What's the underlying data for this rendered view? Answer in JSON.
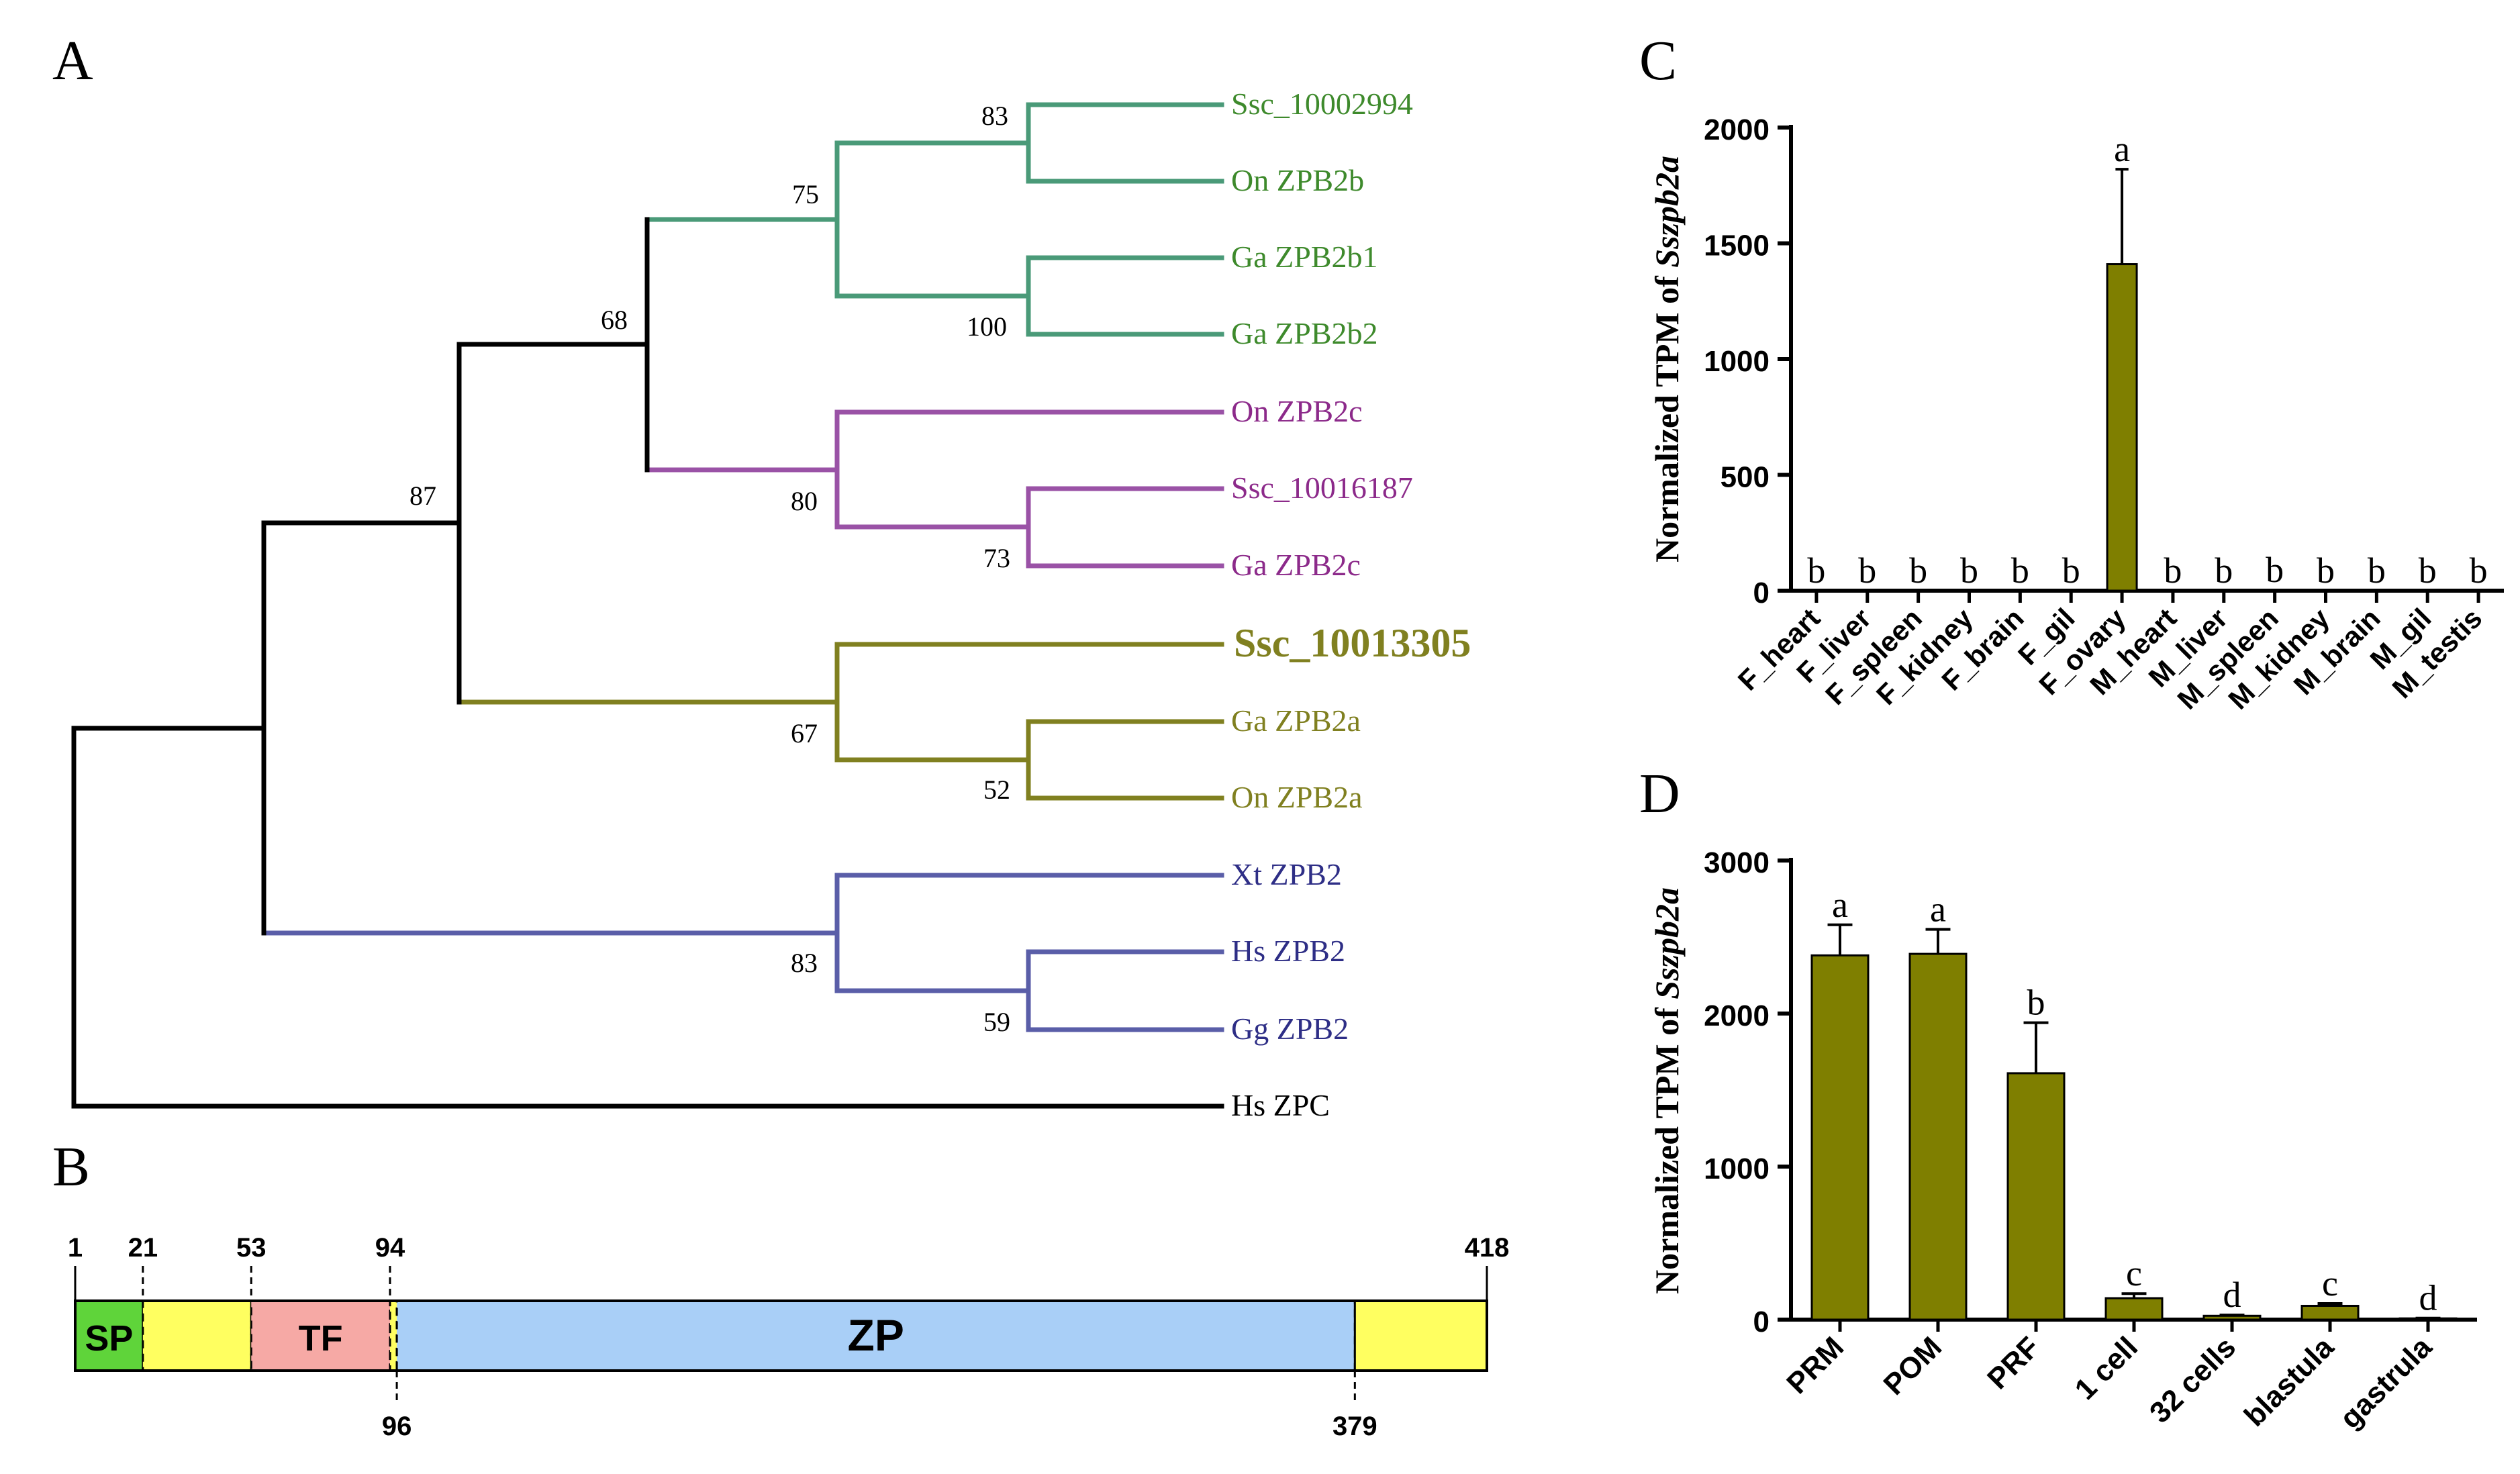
{
  "panels": {
    "A": "A",
    "B": "B",
    "C": "C",
    "D": "D"
  },
  "colors": {
    "green": "#4a9a78",
    "green_text": "#3e8a2c",
    "purple": "#9a52a6",
    "purple_text": "#8c2a8a",
    "olive": "#808020",
    "olive_bar": "#7f7f00",
    "blue": "#5a5ea8",
    "blue_text": "#2e2e86",
    "black": "#000000",
    "sp": "#5fd43a",
    "tf": "#f6a9a5",
    "zp": "#a9cff7",
    "yellow": "#ffff60"
  },
  "tree": {
    "leaves": [
      {
        "label": "Ssc_10002994",
        "group": "green"
      },
      {
        "label": "On ZPB2b",
        "group": "green"
      },
      {
        "label": "Ga ZPB2b1",
        "group": "green"
      },
      {
        "label": "Ga ZPB2b2",
        "group": "green"
      },
      {
        "label": "On ZPB2c",
        "group": "purple"
      },
      {
        "label": "Ssc_10016187",
        "group": "purple"
      },
      {
        "label": "Ga ZPB2c",
        "group": "purple"
      },
      {
        "label": "Ssc_10013305",
        "group": "olive",
        "bold": true
      },
      {
        "label": "Ga ZPB2a",
        "group": "olive"
      },
      {
        "label": "On ZPB2a",
        "group": "olive"
      },
      {
        "label": "Xt ZPB2",
        "group": "blue"
      },
      {
        "label": "Hs ZPB2",
        "group": "blue"
      },
      {
        "label": "Gg ZPB2",
        "group": "blue"
      },
      {
        "label": "Hs ZPC",
        "group": "black"
      }
    ],
    "bootstrap": [
      "83",
      "75",
      "100",
      "68",
      "80",
      "73",
      "87",
      "67",
      "52",
      "83",
      "59"
    ]
  },
  "domain_map": {
    "length": 418,
    "positions": [
      {
        "label": "1",
        "value": 1,
        "side": "top"
      },
      {
        "label": "21",
        "value": 21,
        "side": "top"
      },
      {
        "label": "53",
        "value": 53,
        "side": "top"
      },
      {
        "label": "94",
        "value": 94,
        "side": "top"
      },
      {
        "label": "418",
        "value": 418,
        "side": "top"
      },
      {
        "label": "96",
        "value": 96,
        "side": "bottom"
      },
      {
        "label": "379",
        "value": 379,
        "side": "bottom"
      }
    ],
    "domains": [
      {
        "label": "SP",
        "start": 1,
        "end": 21,
        "color": "sp"
      },
      {
        "label": "",
        "start": 21,
        "end": 53,
        "color": "yellow"
      },
      {
        "label": "TF",
        "start": 53,
        "end": 94,
        "color": "tf"
      },
      {
        "label": "",
        "start": 94,
        "end": 96,
        "color": "yellow"
      },
      {
        "label": "ZP",
        "start": 96,
        "end": 379,
        "color": "zp"
      },
      {
        "label": "",
        "start": 379,
        "end": 418,
        "color": "yellow"
      }
    ]
  },
  "chart_data": [
    {
      "type": "bar",
      "ylabel_prefix": "Normalized TPM of ",
      "ylabel_gene": "Sszpb2a",
      "ylim": [
        0,
        2000
      ],
      "yticks": [
        "0",
        "500",
        "1000",
        "1500",
        "2000"
      ],
      "categories": [
        "F_heart",
        "F_liver",
        "F_spleen",
        "F_kidney",
        "F_brain",
        "F_gil",
        "F_ovary",
        "M_heart",
        "M_liver",
        "M_spleen",
        "M_kidney",
        "M_brain",
        "M_gil",
        "M_testis"
      ],
      "values": [
        0,
        0,
        0,
        0,
        0,
        0,
        1410,
        0,
        0,
        3,
        0,
        0,
        0,
        0
      ],
      "errors": [
        0,
        0,
        0,
        0,
        0,
        0,
        410,
        0,
        0,
        0,
        0,
        0,
        0,
        0
      ],
      "letters": [
        "b",
        "b",
        "b",
        "b",
        "b",
        "b",
        "a",
        "b",
        "b",
        "b",
        "b",
        "b",
        "b",
        "b"
      ]
    },
    {
      "type": "bar",
      "ylabel_prefix": "Normalized TPM of ",
      "ylabel_gene": "Sszpb2a",
      "ylim": [
        0,
        3000
      ],
      "yticks": [
        "0",
        "1000",
        "2000",
        "3000"
      ],
      "categories": [
        "PRM",
        "POM",
        "PRF",
        "1 cell",
        "32 cells",
        "blastula",
        "gastrula"
      ],
      "values": [
        2380,
        2390,
        1610,
        140,
        25,
        90,
        8
      ],
      "errors": [
        200,
        160,
        330,
        30,
        5,
        15,
        2
      ],
      "letters": [
        "a",
        "a",
        "b",
        "c",
        "d",
        "c",
        "d"
      ]
    }
  ]
}
